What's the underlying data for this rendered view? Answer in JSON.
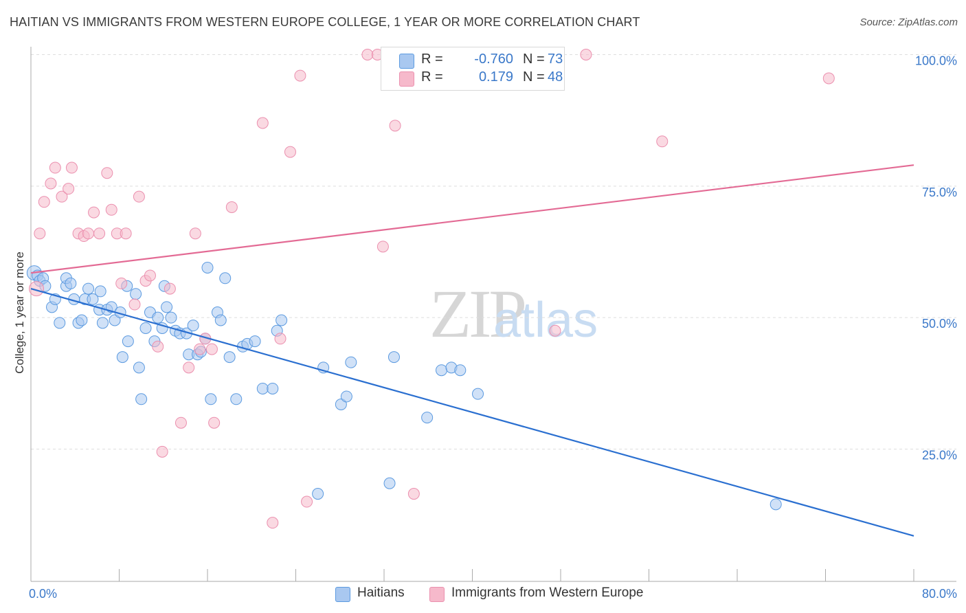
{
  "title": "HAITIAN VS IMMIGRANTS FROM WESTERN EUROPE COLLEGE, 1 YEAR OR MORE CORRELATION CHART",
  "source": "Source: ZipAtlas.com",
  "watermark": {
    "zip": "ZIP",
    "atlas": "atlas"
  },
  "stats_legend": [
    {
      "r_label": "R =",
      "r_value": "-0.760",
      "n_label": "N =",
      "n_value": "73",
      "color": "#a9c8f0"
    },
    {
      "r_label": "R =",
      "r_value": "0.179",
      "n_label": "N =",
      "n_value": "48",
      "color": "#f6b9cb"
    }
  ],
  "bottom_legend": [
    {
      "label": "Haitians",
      "color": "#a9c8f0"
    },
    {
      "label": "Immigrants from Western Europe",
      "color": "#f6b9cb"
    }
  ],
  "chart_data": {
    "type": "scatter",
    "ylabel": "College, 1 year or more",
    "xlabel": "",
    "xlim": [
      0,
      80
    ],
    "ylim": [
      0,
      105
    ],
    "x_tick_labels": [
      {
        "value": 0,
        "label": "0.0%"
      },
      {
        "value": 80,
        "label": "80.0%"
      }
    ],
    "y_tick_labels": [
      {
        "value": 25,
        "label": "25.0%"
      },
      {
        "value": 50,
        "label": "50.0%"
      },
      {
        "value": 75,
        "label": "75.0%"
      },
      {
        "value": 100,
        "label": "100.0%"
      }
    ],
    "grid": true,
    "series": [
      {
        "name": "Haitians",
        "color": "#5b9ae0",
        "fill": "#a9c8f0",
        "line_color": "#2a6fd0",
        "trend": [
          [
            0,
            55.5
          ],
          [
            80,
            8.5
          ]
        ],
        "points": [
          [
            0.3,
            58.5
          ],
          [
            0.6,
            58
          ],
          [
            0.8,
            57
          ],
          [
            1.1,
            57.5
          ],
          [
            1.3,
            56
          ],
          [
            1.9,
            52
          ],
          [
            2.2,
            53.5
          ],
          [
            2.6,
            49
          ],
          [
            3.2,
            56
          ],
          [
            3.2,
            57.5
          ],
          [
            3.6,
            56.5
          ],
          [
            3.9,
            53.5
          ],
          [
            4.3,
            49
          ],
          [
            4.6,
            49.5
          ],
          [
            4.9,
            53.5
          ],
          [
            5.2,
            55.5
          ],
          [
            5.6,
            53.5
          ],
          [
            6.2,
            51.5
          ],
          [
            6.3,
            55
          ],
          [
            6.5,
            49
          ],
          [
            6.9,
            51.5
          ],
          [
            7.3,
            52
          ],
          [
            7.6,
            49.5
          ],
          [
            8.1,
            51
          ],
          [
            8.3,
            42.5
          ],
          [
            8.8,
            45.5
          ],
          [
            8.7,
            56
          ],
          [
            9.5,
            54.5
          ],
          [
            9.8,
            40.5
          ],
          [
            10.0,
            34.5
          ],
          [
            10.4,
            48
          ],
          [
            10.8,
            51
          ],
          [
            11.2,
            45.5
          ],
          [
            11.5,
            50
          ],
          [
            11.9,
            48
          ],
          [
            12.1,
            56
          ],
          [
            12.3,
            52
          ],
          [
            12.7,
            50
          ],
          [
            13.1,
            47.5
          ],
          [
            13.5,
            47
          ],
          [
            14.1,
            47
          ],
          [
            14.3,
            43
          ],
          [
            14.7,
            48.5
          ],
          [
            15.1,
            43
          ],
          [
            15.4,
            43.5
          ],
          [
            15.8,
            46
          ],
          [
            16.0,
            59.5
          ],
          [
            16.3,
            34.5
          ],
          [
            16.9,
            51
          ],
          [
            17.2,
            49.5
          ],
          [
            17.6,
            57.5
          ],
          [
            18.0,
            42.5
          ],
          [
            18.6,
            34.5
          ],
          [
            19.2,
            44.5
          ],
          [
            19.6,
            45
          ],
          [
            20.3,
            45.5
          ],
          [
            21.0,
            36.5
          ],
          [
            21.9,
            36.5
          ],
          [
            22.3,
            47.5
          ],
          [
            22.7,
            49.5
          ],
          [
            26.5,
            40.5
          ],
          [
            26.0,
            16.5
          ],
          [
            28.1,
            33.5
          ],
          [
            28.6,
            35
          ],
          [
            29.0,
            41.5
          ],
          [
            32.5,
            18.5
          ],
          [
            32.9,
            42.5
          ],
          [
            35.9,
            31
          ],
          [
            37.2,
            40
          ],
          [
            38.1,
            40.5
          ],
          [
            38.9,
            40
          ],
          [
            40.5,
            35.5
          ],
          [
            67.5,
            14.5
          ]
        ]
      },
      {
        "name": "Immigrants from Western Europe",
        "color": "#eb8fae",
        "fill": "#f6b9cb",
        "line_color": "#e36a94",
        "trend": [
          [
            0,
            58.5
          ],
          [
            80,
            79
          ]
        ],
        "points": [
          [
            0.5,
            55.5
          ],
          [
            0.8,
            66
          ],
          [
            1.2,
            72
          ],
          [
            1.8,
            75.5
          ],
          [
            2.2,
            78.5
          ],
          [
            2.8,
            73
          ],
          [
            3.4,
            74.5
          ],
          [
            3.7,
            78.5
          ],
          [
            4.3,
            66
          ],
          [
            4.8,
            65.5
          ],
          [
            5.2,
            66
          ],
          [
            5.7,
            70
          ],
          [
            6.2,
            66
          ],
          [
            6.9,
            77.5
          ],
          [
            7.3,
            70.5
          ],
          [
            7.8,
            66
          ],
          [
            8.2,
            56.5
          ],
          [
            8.6,
            66
          ],
          [
            9.4,
            52.5
          ],
          [
            9.8,
            73
          ],
          [
            10.4,
            57
          ],
          [
            10.8,
            58
          ],
          [
            11.5,
            44.5
          ],
          [
            11.9,
            24.5
          ],
          [
            12.6,
            55.5
          ],
          [
            13.6,
            30
          ],
          [
            14.3,
            40.5
          ],
          [
            14.9,
            66
          ],
          [
            15.3,
            44
          ],
          [
            15.8,
            46
          ],
          [
            16.4,
            44
          ],
          [
            16.6,
            30
          ],
          [
            18.2,
            71
          ],
          [
            21.0,
            87
          ],
          [
            21.9,
            11
          ],
          [
            22.6,
            46
          ],
          [
            23.5,
            81.5
          ],
          [
            24.4,
            96
          ],
          [
            25.0,
            15
          ],
          [
            30.5,
            100
          ],
          [
            31.4,
            100
          ],
          [
            31.9,
            63.5
          ],
          [
            33.0,
            86.5
          ],
          [
            34.7,
            16.5
          ],
          [
            47.5,
            47.5
          ],
          [
            50.3,
            100
          ],
          [
            57.2,
            83.5
          ],
          [
            72.3,
            95.5
          ]
        ]
      }
    ]
  }
}
